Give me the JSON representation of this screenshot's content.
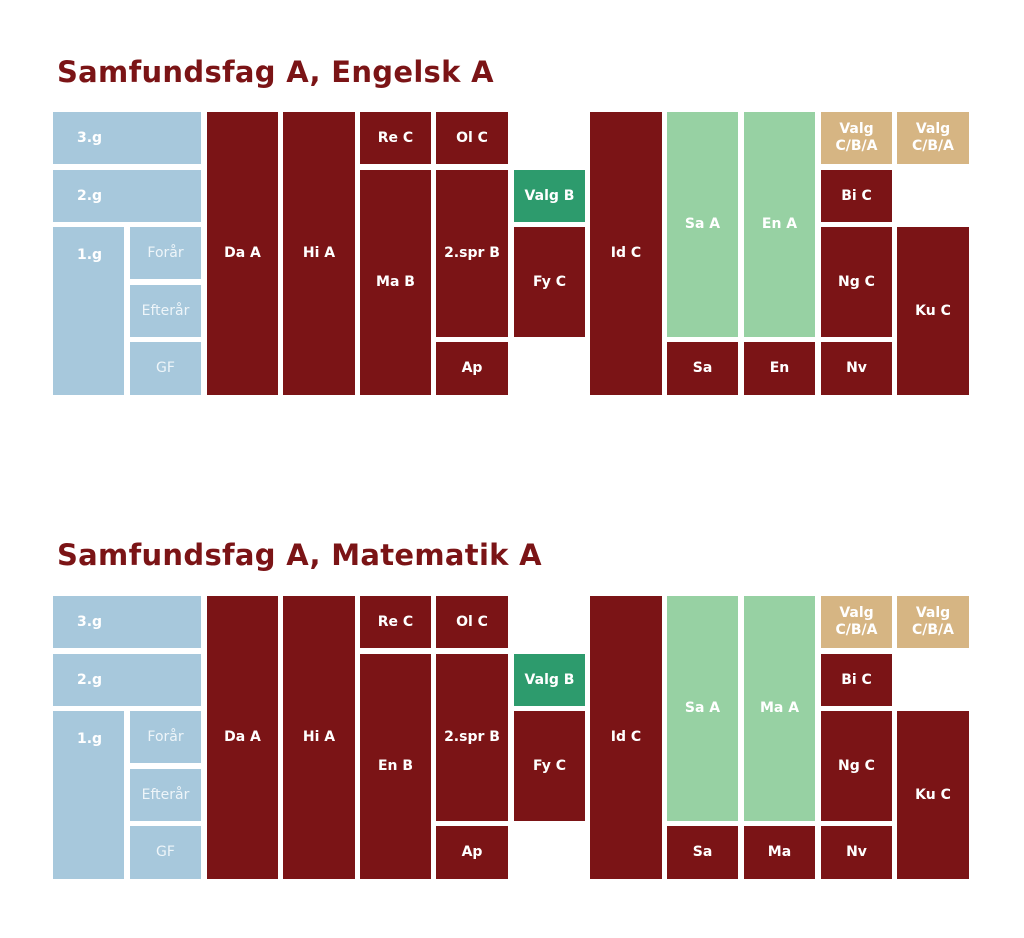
{
  "colors": {
    "title": "#7b1416",
    "year_block": "#a7c8dc",
    "core_subject": "#7b1416",
    "study_subject": "#97d1a3",
    "elective_b": "#2d9b6d",
    "elective_free": "#d6b583",
    "semester_text": "#eef5f9"
  },
  "diagrams": [
    {
      "title": "Samfundsfag A, Engelsk A",
      "years": {
        "g3": "3.g",
        "g2": "2.g",
        "g1": "1.g"
      },
      "semesters": {
        "spring": "Forår",
        "autumn": "Efterår",
        "gf": "GF"
      },
      "blocks": {
        "da": "Da A",
        "hi": "Hi A",
        "re": "Re C",
        "ol": "Ol C",
        "ma": "Ma B",
        "spr": "2.spr B",
        "ap": "Ap",
        "valgb": "Valg B",
        "fy": "Fy C",
        "id": "Id C",
        "stud1": "Sa A",
        "stud2": "En A",
        "stud1_sub": "Sa",
        "stud2_sub": "En",
        "valg1": "Valg\nC/B/A",
        "valg2": "Valg\nC/B/A",
        "bi": "Bi C",
        "ng": "Ng C",
        "nv": "Nv",
        "ku": "Ku C"
      }
    },
    {
      "title": "Samfundsfag A, Matematik A",
      "years": {
        "g3": "3.g",
        "g2": "2.g",
        "g1": "1.g"
      },
      "semesters": {
        "spring": "Forår",
        "autumn": "Efterår",
        "gf": "GF"
      },
      "blocks": {
        "da": "Da A",
        "hi": "Hi A",
        "re": "Re C",
        "ol": "Ol C",
        "ma": "En B",
        "spr": "2.spr B",
        "ap": "Ap",
        "valgb": "Valg B",
        "fy": "Fy C",
        "id": "Id C",
        "stud1": "Sa A",
        "stud2": "Ma A",
        "stud1_sub": "Sa",
        "stud2_sub": "Ma",
        "valg1": "Valg\nC/B/A",
        "valg2": "Valg\nC/B/A",
        "bi": "Bi C",
        "ng": "Ng C",
        "nv": "Nv",
        "ku": "Ku C"
      }
    }
  ]
}
